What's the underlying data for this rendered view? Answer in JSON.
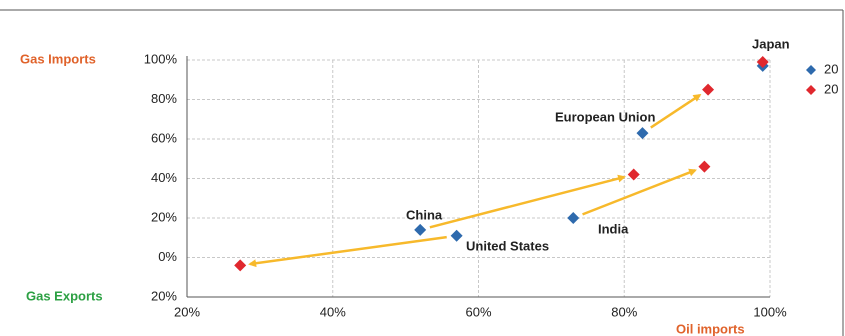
{
  "chart_data": {
    "type": "scatter",
    "xlabel": "Oil imports",
    "ylabel_top": "Gas Imports",
    "ylabel_bottom": "Gas Exports",
    "point_labels": [
      "Japan",
      "European Union",
      "India",
      "China",
      "United States"
    ],
    "series": [
      {
        "name": "20",
        "color": "#2e6aad",
        "x": [
          99,
          82.5,
          73,
          52,
          57
        ],
        "values": [
          97,
          63,
          20,
          14,
          11
        ]
      },
      {
        "name": "20",
        "color": "#e0282e",
        "x": [
          99,
          91.5,
          91,
          81.3,
          27.3
        ],
        "values": [
          99,
          85,
          46,
          42,
          -4
        ]
      }
    ],
    "arrow_color": "#f7b92b",
    "xlim": [
      20,
      100
    ],
    "ylim": [
      -20,
      100
    ],
    "xticks": [
      {
        "value": 20,
        "label": "20%"
      },
      {
        "value": 40,
        "label": "40%"
      },
      {
        "value": 60,
        "label": "60%"
      },
      {
        "value": 80,
        "label": "80%"
      },
      {
        "value": 100,
        "label": "100%"
      }
    ],
    "yticks": [
      {
        "value": 100,
        "label": "100%"
      },
      {
        "value": 80,
        "label": "80%"
      },
      {
        "value": 60,
        "label": "60%"
      },
      {
        "value": 40,
        "label": "40%"
      },
      {
        "value": 20,
        "label": "20%"
      },
      {
        "value": 0,
        "label": "0%"
      },
      {
        "value": -20,
        "label": "20%"
      }
    ],
    "grid": true
  }
}
